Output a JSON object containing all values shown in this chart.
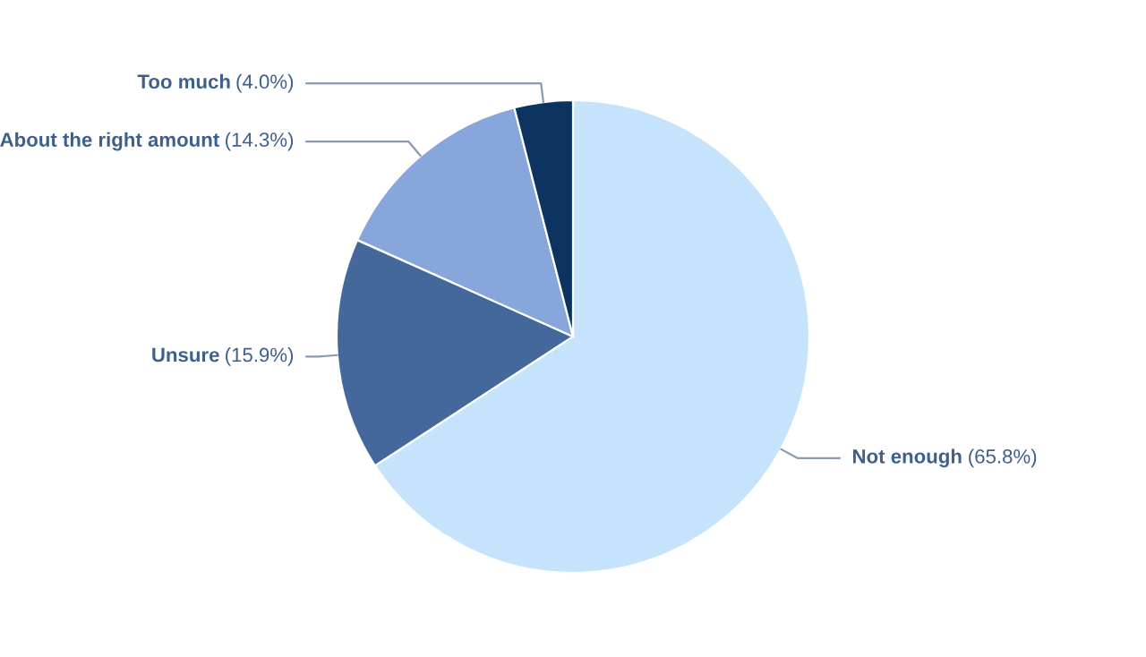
{
  "chart_data": {
    "type": "pie",
    "categories": [
      "Not enough",
      "Unsure",
      "About the right amount",
      "Too much"
    ],
    "values": [
      65.8,
      15.9,
      14.3,
      4.0
    ],
    "colors": [
      "#c5e3fc",
      "#44689c",
      "#86a6dc",
      "#0d3460"
    ],
    "value_labels": [
      "(65.8%)",
      "(15.9%)",
      "(14.3%)",
      "(4.0%)"
    ],
    "legend": false
  }
}
